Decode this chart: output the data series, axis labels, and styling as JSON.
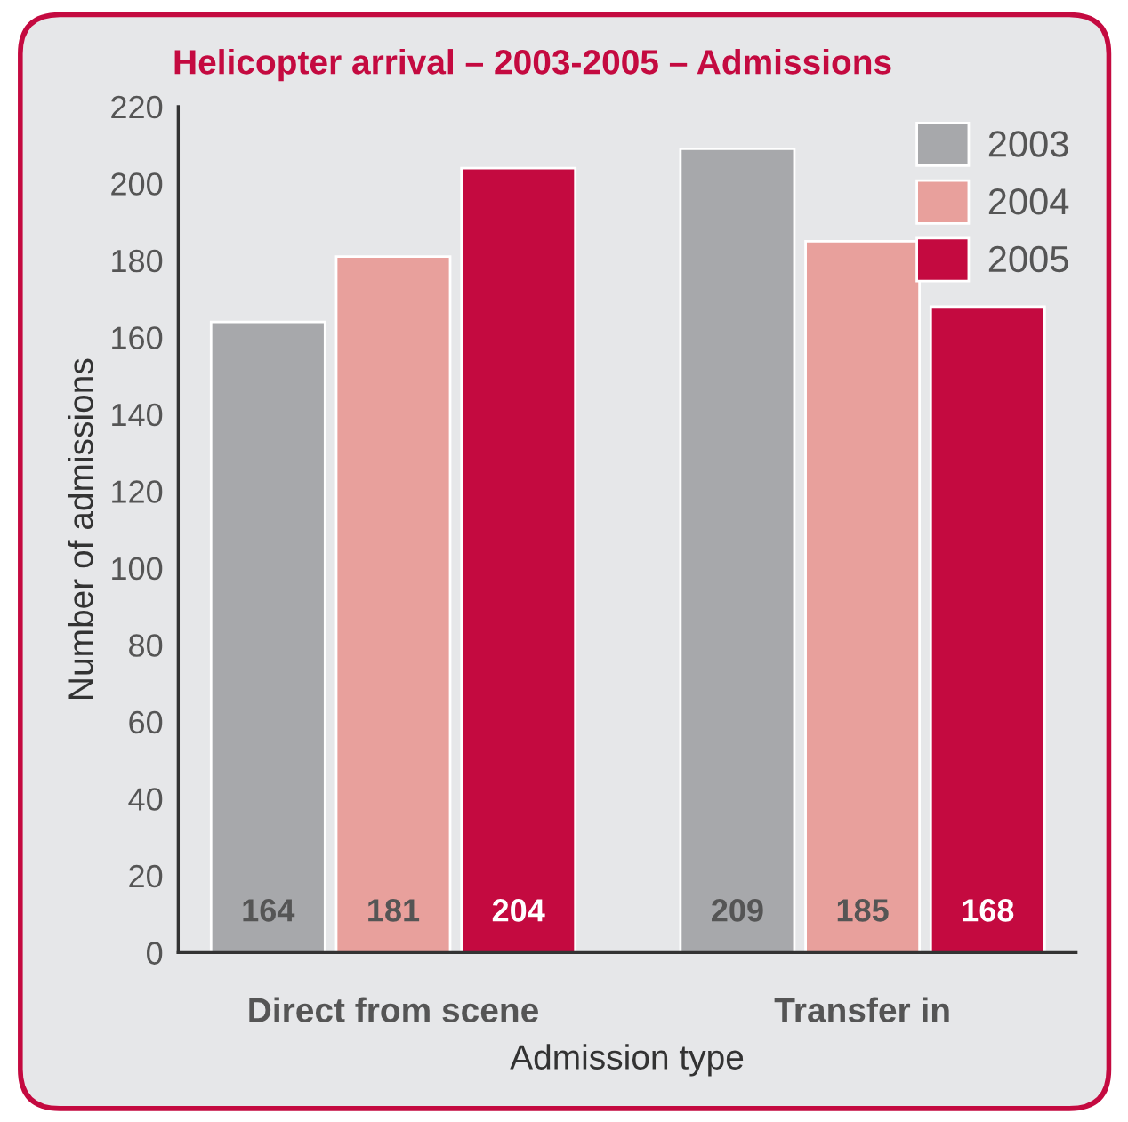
{
  "chart_data": {
    "type": "bar",
    "title": "Helicopter arrival – 2003-2005 – Admissions",
    "xlabel": "Admission type",
    "ylabel": "Number of admissions",
    "categories": [
      "Direct from scene",
      "Transfer in"
    ],
    "series": [
      {
        "name": "2003",
        "color": "#a7a8ab",
        "values": [
          164,
          209
        ]
      },
      {
        "name": "2004",
        "color": "#e8a09c",
        "values": [
          181,
          185
        ]
      },
      {
        "name": "2005",
        "color": "#c40a40",
        "values": [
          204,
          168
        ]
      }
    ],
    "ylim": [
      0,
      220
    ],
    "yticks": [
      0,
      20,
      40,
      60,
      80,
      100,
      120,
      140,
      160,
      180,
      200,
      220
    ],
    "data_labels": true,
    "grid": false,
    "legend": "top right"
  }
}
